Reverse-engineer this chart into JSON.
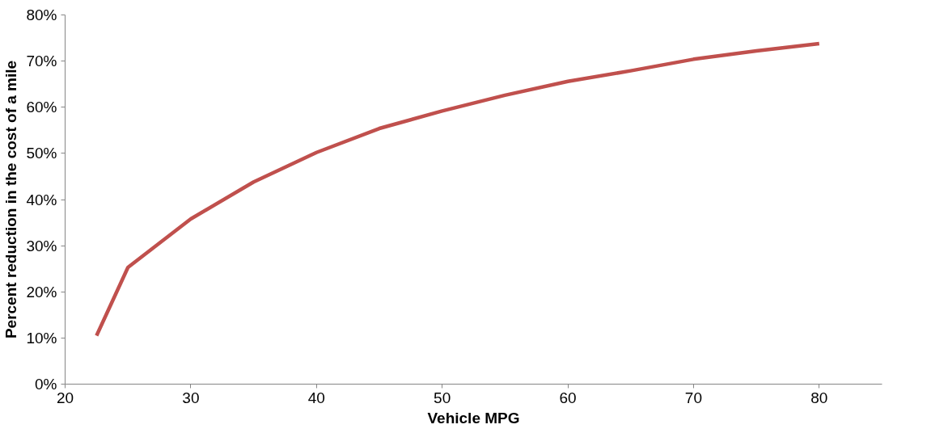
{
  "chart_data": {
    "type": "line",
    "xlabel": "Vehicle MPG",
    "ylabel": "Percent reduction in the cost of a mile",
    "x": [
      22.5,
      25,
      30,
      35,
      40,
      45,
      50,
      55,
      60,
      65,
      70,
      75,
      80
    ],
    "series": [
      {
        "color": "#c0504d",
        "values": [
          10.5,
          25.3,
          35.8,
          43.8,
          50.2,
          55.4,
          59.2,
          62.6,
          65.6,
          67.9,
          70.4,
          72.2,
          73.8
        ]
      }
    ],
    "xlim": [
      20,
      85
    ],
    "xticks": [
      20,
      30,
      40,
      50,
      60,
      70,
      80
    ],
    "ylim": [
      0,
      80
    ],
    "yticks": [
      {
        "value": 0,
        "label": "0%"
      },
      {
        "value": 10,
        "label": "10%"
      },
      {
        "value": 20,
        "label": "20%"
      },
      {
        "value": 30,
        "label": "30%"
      },
      {
        "value": 40,
        "label": "40%"
      },
      {
        "value": 50,
        "label": "50%"
      },
      {
        "value": 60,
        "label": "60%"
      },
      {
        "value": 70,
        "label": "70%"
      },
      {
        "value": 80,
        "label": "80%"
      }
    ],
    "grid": false,
    "marker": "none",
    "line_style": "solid"
  }
}
